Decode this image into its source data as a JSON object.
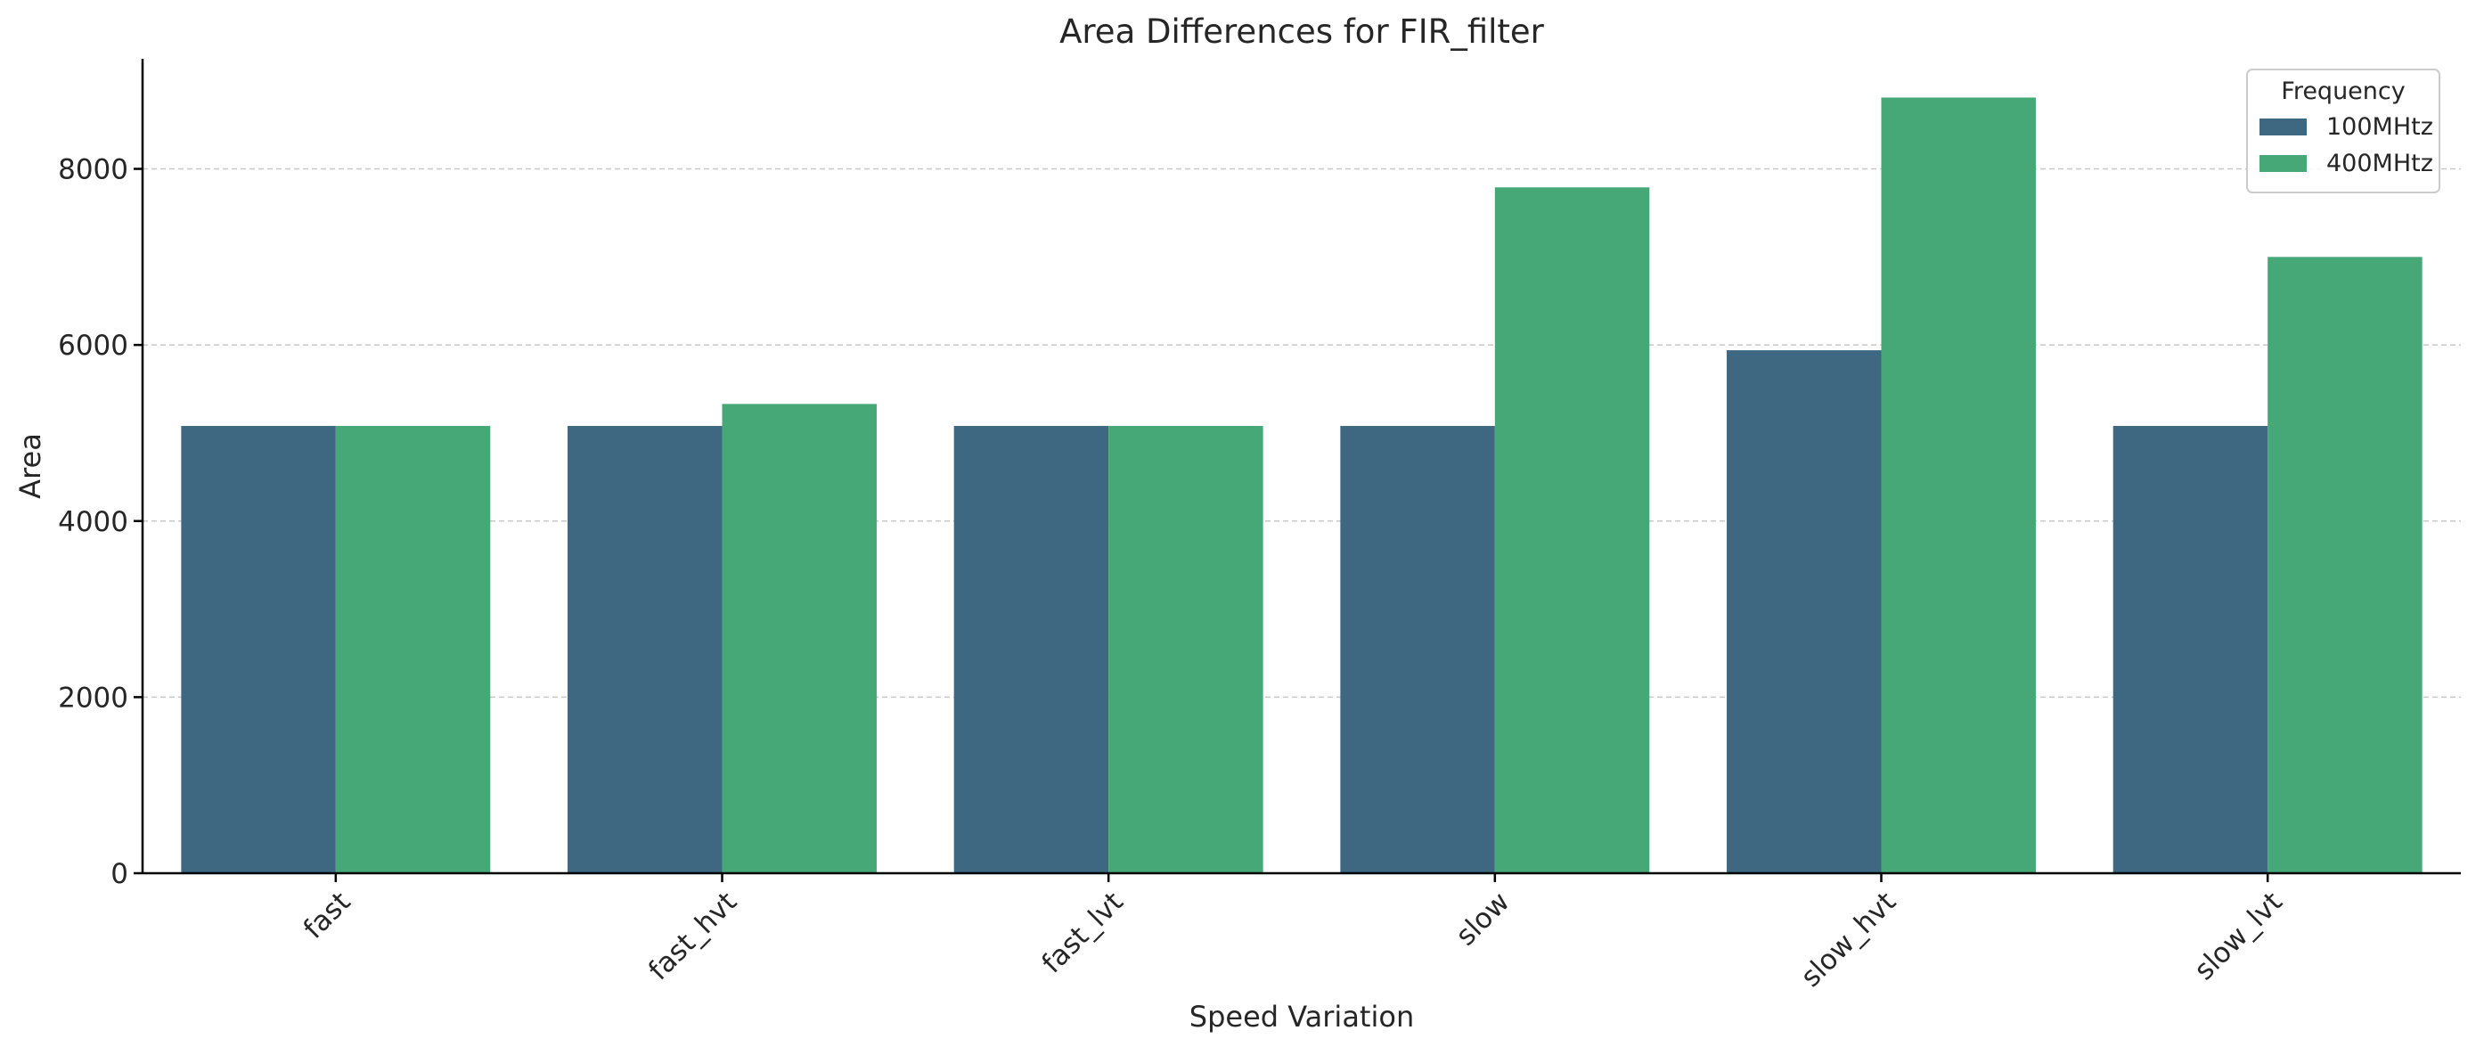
{
  "chart_data": {
    "type": "bar",
    "title": "Area Differences for FIR_filter",
    "xlabel": "Speed Variation",
    "ylabel": "Area",
    "categories": [
      "fast",
      "fast_hvt",
      "fast_lvt",
      "slow",
      "slow_hvt",
      "slow_lvt"
    ],
    "series": [
      {
        "name": "100MHtz",
        "color": "#3e6782",
        "values": [
          5080,
          5080,
          5080,
          5080,
          5940,
          5080
        ]
      },
      {
        "name": "400MHtz",
        "color": "#46a877",
        "values": [
          5080,
          5330,
          5080,
          7790,
          8810,
          7000
        ]
      }
    ],
    "ylim": [
      0,
      9250
    ],
    "yticks": [
      0,
      2000,
      4000,
      6000,
      8000
    ],
    "ytick_labels": [
      "0",
      "2000",
      "4000",
      "6000",
      "8000"
    ],
    "grid": "y-dashed",
    "legend": {
      "title": "Frequency",
      "placement": "top-right"
    }
  }
}
